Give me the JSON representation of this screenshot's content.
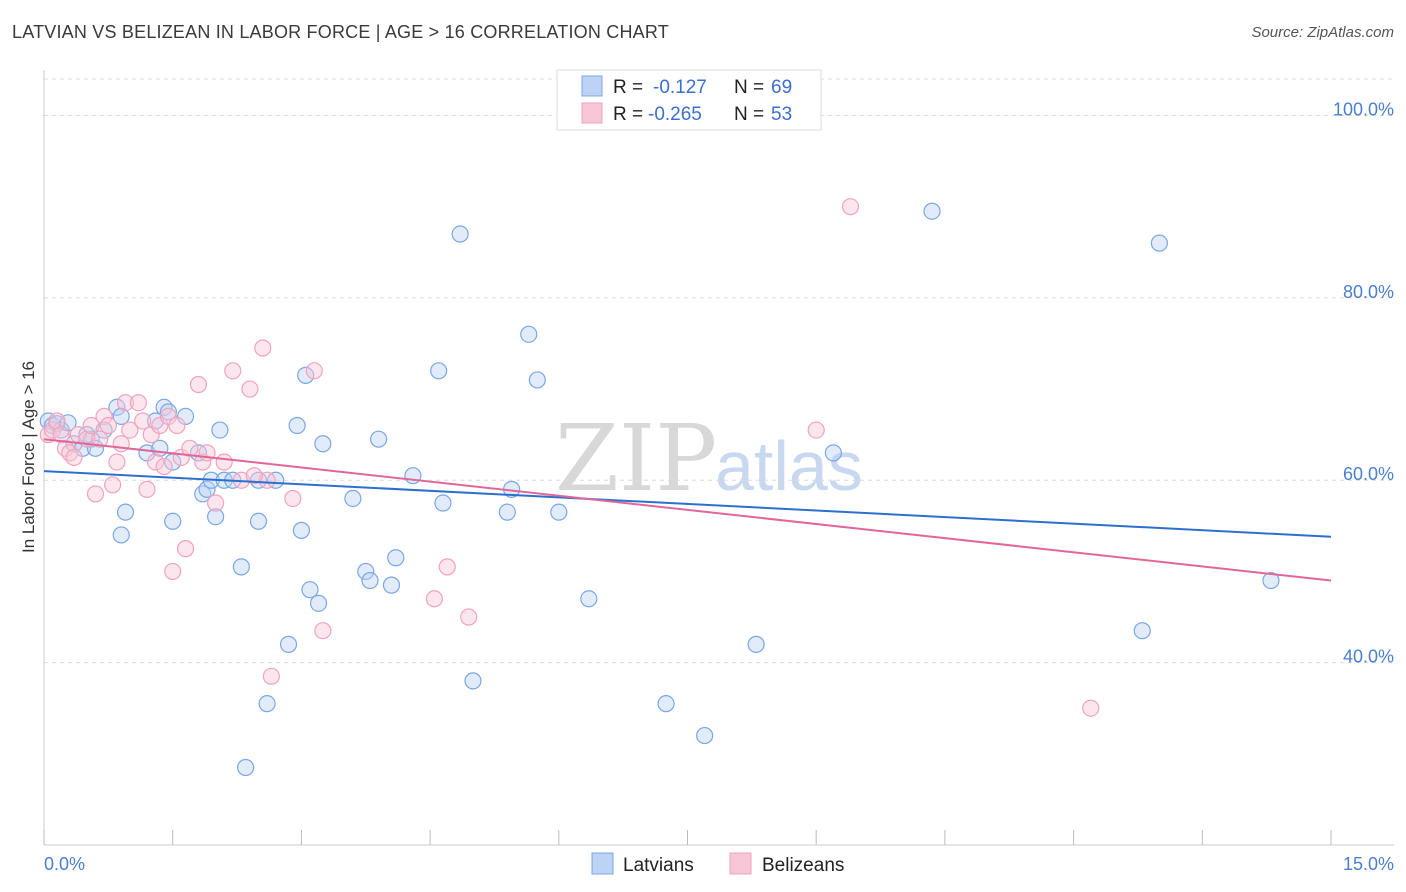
{
  "title": "LATVIAN VS BELIZEAN IN LABOR FORCE | AGE > 16 CORRELATION CHART",
  "source": "Source: ZipAtlas.com",
  "watermark": {
    "zip": "ZIP",
    "atlas": "atlas"
  },
  "chart_data": {
    "type": "scatter",
    "ylabel": "In Labor Force | Age > 16",
    "xlim": [
      0,
      15
    ],
    "ylim": [
      20,
      104
    ],
    "x_tick_labels": {
      "left": "0.0%",
      "right": "15.0%"
    },
    "y_ticks": [
      {
        "value": 100,
        "label": "100.0%"
      },
      {
        "value": 80,
        "label": "80.0%"
      },
      {
        "value": 60,
        "label": "60.0%"
      },
      {
        "value": 40,
        "label": "40.0%"
      }
    ],
    "legend": [
      {
        "r_label": "R =",
        "r_value": "-0.127",
        "n_label": "N =",
        "n_value": "69"
      },
      {
        "r_label": "R =",
        "r_value": "-0.265",
        "n_label": "N =",
        "n_value": "53"
      }
    ],
    "series": [
      {
        "name": "Latvians",
        "color": "#7aa7e6",
        "line_color": "#2d6fce",
        "trend": {
          "x": [
            0,
            15
          ],
          "y": [
            61.0,
            53.8
          ]
        },
        "points": [
          [
            0.05,
            66.5
          ],
          [
            0.1,
            66.0
          ],
          [
            0.15,
            66.2
          ],
          [
            0.2,
            65.5
          ],
          [
            0.28,
            66.3
          ],
          [
            0.35,
            64.0
          ],
          [
            0.45,
            63.5
          ],
          [
            0.5,
            65.0
          ],
          [
            0.55,
            64.5
          ],
          [
            0.7,
            65.5
          ],
          [
            0.85,
            68.0
          ],
          [
            0.9,
            67.0
          ],
          [
            0.95,
            56.5
          ],
          [
            0.9,
            54.0
          ],
          [
            1.2,
            63.0
          ],
          [
            1.35,
            63.5
          ],
          [
            1.4,
            68.0
          ],
          [
            1.45,
            67.5
          ],
          [
            1.5,
            62.0
          ],
          [
            1.5,
            55.5
          ],
          [
            1.65,
            67.0
          ],
          [
            1.8,
            63.0
          ],
          [
            1.85,
            58.5
          ],
          [
            1.9,
            59.0
          ],
          [
            1.95,
            60.0
          ],
          [
            2.05,
            65.5
          ],
          [
            2.1,
            60.0
          ],
          [
            2.2,
            60.0
          ],
          [
            2.3,
            50.5
          ],
          [
            2.35,
            28.5
          ],
          [
            2.5,
            55.5
          ],
          [
            2.5,
            60.0
          ],
          [
            2.6,
            35.5
          ],
          [
            2.7,
            60.0
          ],
          [
            2.85,
            42.0
          ],
          [
            2.95,
            66.0
          ],
          [
            3.0,
            54.5
          ],
          [
            3.05,
            71.5
          ],
          [
            3.1,
            48.0
          ],
          [
            3.2,
            46.5
          ],
          [
            3.25,
            64.0
          ],
          [
            3.6,
            58.0
          ],
          [
            3.75,
            50.0
          ],
          [
            3.8,
            49.0
          ],
          [
            3.9,
            64.5
          ],
          [
            4.05,
            48.5
          ],
          [
            4.1,
            51.5
          ],
          [
            4.3,
            60.5
          ],
          [
            4.6,
            72.0
          ],
          [
            4.65,
            57.5
          ],
          [
            4.85,
            87.0
          ],
          [
            5.0,
            38.0
          ],
          [
            5.4,
            56.5
          ],
          [
            5.45,
            59.0
          ],
          [
            5.65,
            76.0
          ],
          [
            5.75,
            71.0
          ],
          [
            6.0,
            56.5
          ],
          [
            6.35,
            47.0
          ],
          [
            7.25,
            35.5
          ],
          [
            7.7,
            32.0
          ],
          [
            8.3,
            42.0
          ],
          [
            9.2,
            63.0
          ],
          [
            10.35,
            89.5
          ],
          [
            12.8,
            43.5
          ],
          [
            13.0,
            86.0
          ],
          [
            14.3,
            49.0
          ],
          [
            1.3,
            66.5
          ],
          [
            0.6,
            63.5
          ],
          [
            2.0,
            56.0
          ]
        ]
      },
      {
        "name": "Belizeans",
        "color": "#f1a3bd",
        "line_color": "#e0679a",
        "trend": {
          "x": [
            0,
            15
          ],
          "y": [
            64.5,
            49.0
          ]
        },
        "points": [
          [
            0.05,
            65.0
          ],
          [
            0.1,
            65.5
          ],
          [
            0.15,
            66.5
          ],
          [
            0.2,
            65.0
          ],
          [
            0.25,
            63.5
          ],
          [
            0.3,
            63.0
          ],
          [
            0.4,
            65.0
          ],
          [
            0.5,
            64.5
          ],
          [
            0.55,
            66.0
          ],
          [
            0.6,
            58.5
          ],
          [
            0.7,
            67.0
          ],
          [
            0.75,
            66.0
          ],
          [
            0.8,
            59.5
          ],
          [
            0.85,
            62.0
          ],
          [
            0.9,
            64.0
          ],
          [
            0.95,
            68.5
          ],
          [
            1.0,
            65.5
          ],
          [
            1.1,
            68.5
          ],
          [
            1.15,
            66.5
          ],
          [
            1.2,
            59.0
          ],
          [
            1.25,
            65.0
          ],
          [
            1.3,
            62.0
          ],
          [
            1.35,
            66.0
          ],
          [
            1.4,
            61.5
          ],
          [
            1.45,
            67.0
          ],
          [
            1.5,
            50.0
          ],
          [
            1.6,
            62.5
          ],
          [
            1.65,
            52.5
          ],
          [
            1.7,
            63.5
          ],
          [
            1.8,
            70.5
          ],
          [
            1.85,
            62.0
          ],
          [
            1.9,
            63.0
          ],
          [
            2.0,
            57.5
          ],
          [
            2.1,
            62.0
          ],
          [
            2.2,
            72.0
          ],
          [
            2.3,
            60.0
          ],
          [
            2.4,
            70.0
          ],
          [
            2.55,
            74.5
          ],
          [
            2.6,
            60.0
          ],
          [
            2.65,
            38.5
          ],
          [
            2.9,
            58.0
          ],
          [
            3.15,
            72.0
          ],
          [
            3.25,
            43.5
          ],
          [
            4.55,
            47.0
          ],
          [
            4.7,
            50.5
          ],
          [
            4.95,
            45.0
          ],
          [
            9.0,
            65.5
          ],
          [
            9.4,
            90.0
          ],
          [
            12.2,
            35.0
          ],
          [
            0.35,
            62.5
          ],
          [
            0.65,
            64.5
          ],
          [
            1.55,
            66.0
          ],
          [
            2.45,
            60.5
          ]
        ]
      }
    ]
  }
}
